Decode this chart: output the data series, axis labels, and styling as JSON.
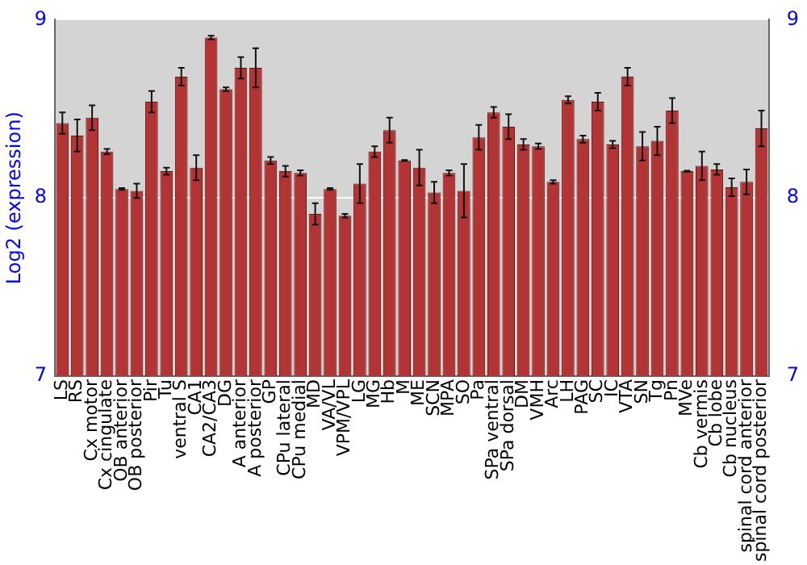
{
  "chart_data": {
    "type": "bar",
    "ylabel": "Log2 (expression)",
    "categories": [
      "LS",
      "RS",
      "Cx motor",
      "Cx cingulate",
      "OB anterior",
      "OB posterior",
      "Pir",
      "Tu",
      "ventral S",
      "CA1",
      "CA2/CA3",
      "DG",
      "A anterior",
      "A posterior",
      "GP",
      "CPu lateral",
      "CPu medial",
      "MD",
      "VA/VL",
      "VPM/VPL",
      "LG",
      "MG",
      "Hb",
      "M",
      "ME",
      "SCN",
      "MPA",
      "SO",
      "Pa",
      "SPa ventral",
      "SPa dorsal",
      "DM",
      "VMH",
      "Arc",
      "LH",
      "PAG",
      "SC",
      "IC",
      "VTA",
      "SN",
      "Tg",
      "Pn",
      "MVe",
      "Cb vermis",
      "Cb lobe",
      "Cb nucleus",
      "spinal cord anterior",
      "spinal cord posterior"
    ],
    "values": [
      8.42,
      8.35,
      8.45,
      8.26,
      8.05,
      8.04,
      8.54,
      8.15,
      8.68,
      8.17,
      8.9,
      8.61,
      8.73,
      8.73,
      8.21,
      8.15,
      8.14,
      7.91,
      8.05,
      7.9,
      8.08,
      8.26,
      8.38,
      8.21,
      8.17,
      8.03,
      8.14,
      8.04,
      8.34,
      8.48,
      8.4,
      8.3,
      8.29,
      8.09,
      8.55,
      8.33,
      8.54,
      8.3,
      8.68,
      8.29,
      8.32,
      8.49,
      8.15,
      8.18,
      8.16,
      8.06,
      8.09,
      8.39
    ],
    "errors": [
      0.06,
      0.09,
      0.07,
      0.015,
      0.005,
      0.04,
      0.06,
      0.02,
      0.05,
      0.07,
      0.01,
      0.01,
      0.06,
      0.11,
      0.02,
      0.03,
      0.015,
      0.06,
      0.005,
      0.01,
      0.11,
      0.03,
      0.07,
      0.003,
      0.1,
      0.06,
      0.015,
      0.15,
      0.07,
      0.03,
      0.07,
      0.03,
      0.015,
      0.01,
      0.02,
      0.02,
      0.05,
      0.02,
      0.05,
      0.08,
      0.08,
      0.07,
      0.003,
      0.08,
      0.03,
      0.05,
      0.07,
      0.1
    ],
    "color": "#b33434",
    "ylim": [
      7,
      9
    ],
    "yticks": [
      7,
      8,
      9
    ],
    "y2lim": [
      7,
      9
    ],
    "y2ticks": [
      7,
      8,
      9
    ],
    "grid": "y"
  }
}
